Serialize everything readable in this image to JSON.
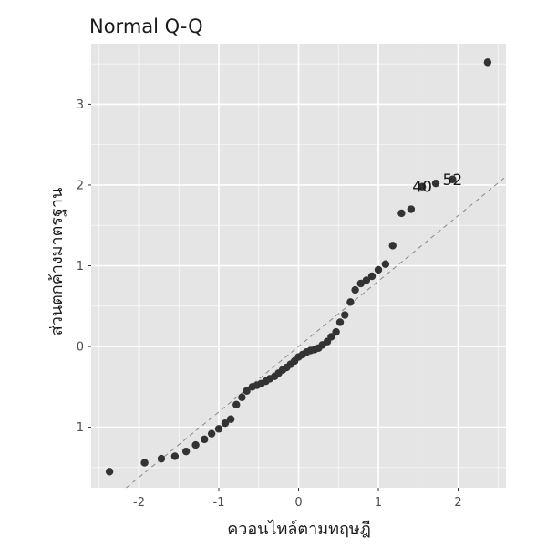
{
  "chart_data": {
    "type": "scatter",
    "title": "Normal Q-Q",
    "xlabel": "ควอนไทล์ตามทฤษฎี",
    "ylabel": "ส่วนตกค้างมาตรฐาน",
    "xlim": [
      -2.6,
      2.6
    ],
    "ylim": [
      -1.75,
      3.75
    ],
    "xticks": [
      -2,
      -1,
      0,
      1,
      2
    ],
    "yticks": [
      -1,
      0,
      1,
      2,
      3
    ],
    "grid": true,
    "reference_line": {
      "intercept": 0.0,
      "slope": 0.81,
      "style": "dashed"
    },
    "points": {
      "x": [
        -2.37,
        -1.93,
        -1.72,
        -1.55,
        -1.41,
        -1.29,
        -1.18,
        -1.09,
        -1.0,
        -0.92,
        -0.85,
        -0.78,
        -0.71,
        -0.65,
        -0.58,
        -0.52,
        -0.47,
        -0.41,
        -0.36,
        -0.3,
        -0.25,
        -0.2,
        -0.15,
        -0.1,
        -0.05,
        0.0,
        0.05,
        0.1,
        0.15,
        0.2,
        0.25,
        0.3,
        0.36,
        0.41,
        0.47,
        0.52,
        0.58,
        0.65,
        0.71,
        0.78,
        0.85,
        0.92,
        1.0,
        1.09,
        1.18,
        1.29,
        1.41,
        1.55,
        1.72,
        1.93,
        2.37
      ],
      "y": [
        -1.55,
        -1.44,
        -1.39,
        -1.36,
        -1.3,
        -1.22,
        -1.15,
        -1.08,
        -1.02,
        -0.95,
        -0.9,
        -0.72,
        -0.63,
        -0.55,
        -0.5,
        -0.48,
        -0.46,
        -0.43,
        -0.4,
        -0.37,
        -0.33,
        -0.29,
        -0.26,
        -0.22,
        -0.18,
        -0.13,
        -0.1,
        -0.07,
        -0.05,
        -0.04,
        -0.02,
        0.02,
        0.06,
        0.12,
        0.18,
        0.3,
        0.39,
        0.55,
        0.7,
        0.78,
        0.82,
        0.87,
        0.95,
        1.02,
        1.25,
        1.65,
        1.7,
        1.98,
        2.02,
        2.07,
        3.52
      ]
    },
    "point_labels": [
      {
        "text": "40",
        "x": 1.55,
        "y": 1.98
      },
      {
        "text": "52",
        "x": 1.93,
        "y": 2.07
      }
    ],
    "colors": {
      "panel": "#e5e5e5",
      "grid": "#ffffff",
      "point": "#333333",
      "reference_line": "#888888"
    }
  }
}
